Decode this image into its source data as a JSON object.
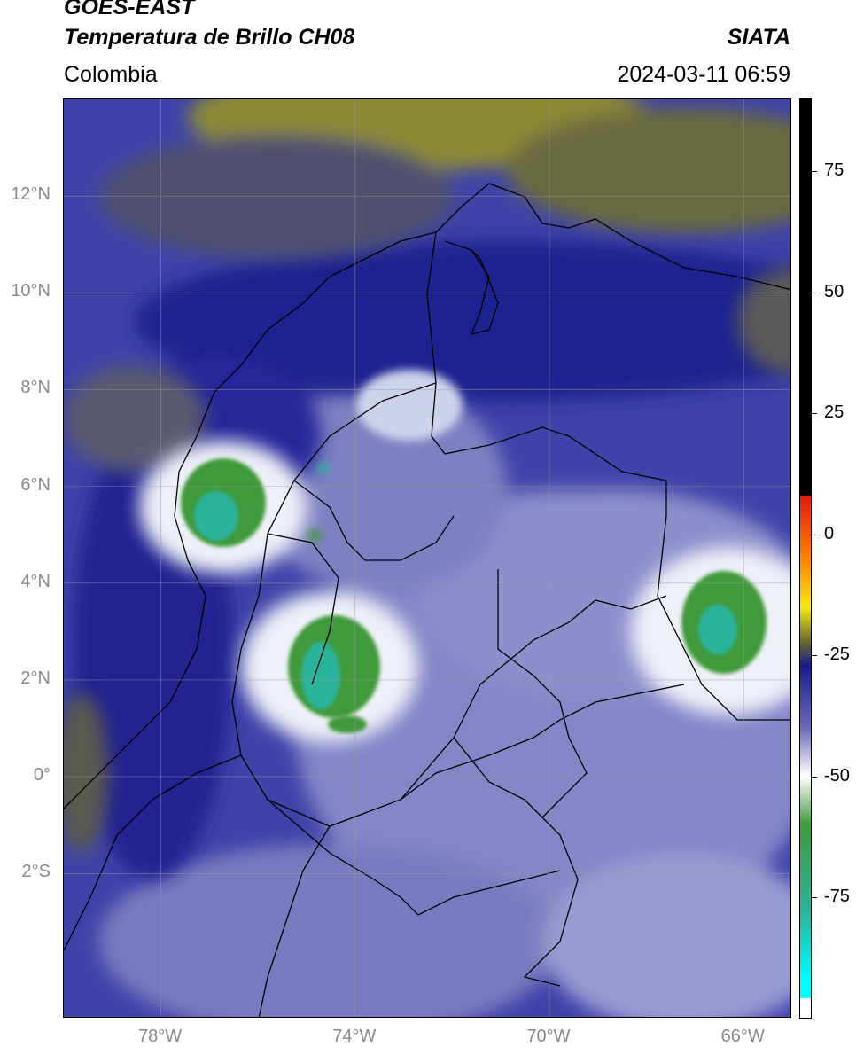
{
  "header": {
    "satellite": "GOES-EAST",
    "product": "Temperatura de Brillo CH08",
    "region": "Colombia",
    "agency": "SIATA",
    "timestamp": "2024-03-11 06:59"
  },
  "map": {
    "lon_range": [
      -80,
      -65
    ],
    "lat_range": [
      -5,
      14
    ],
    "lon_ticks": [
      {
        "value": -78,
        "label": "78°W"
      },
      {
        "value": -74,
        "label": "74°W"
      },
      {
        "value": -70,
        "label": "70°W"
      },
      {
        "value": -66,
        "label": "66°W"
      }
    ],
    "lat_ticks": [
      {
        "value": 12,
        "label": "12°N"
      },
      {
        "value": 10,
        "label": "10°N"
      },
      {
        "value": 8,
        "label": "8°N"
      },
      {
        "value": 6,
        "label": "6°N"
      },
      {
        "value": 4,
        "label": "4°N"
      },
      {
        "value": 2,
        "label": "2°N"
      },
      {
        "value": 0,
        "label": "0°"
      },
      {
        "value": -2,
        "label": "2°S"
      }
    ],
    "gridlines": true,
    "colors": {
      "background": "#3d3fa6",
      "dry_air": "#6b6a2c",
      "cloud_white": "#eef0f6",
      "cold_top_green": "#3f8f3b",
      "coldest_teal": "#2fb29a",
      "borders": "#000000"
    }
  },
  "colorbar": {
    "range": [
      -100,
      90
    ],
    "tick_labels": [
      {
        "value": 75,
        "label": "75"
      },
      {
        "value": 50,
        "label": "50"
      },
      {
        "value": 25,
        "label": "25"
      },
      {
        "value": 0,
        "label": "0"
      },
      {
        "value": -25,
        "label": "-25"
      },
      {
        "value": -50,
        "label": "-50"
      },
      {
        "value": -75,
        "label": "-75"
      }
    ],
    "stops": [
      {
        "value": 90,
        "color": "#000000"
      },
      {
        "value": 8,
        "color": "#000000"
      },
      {
        "value": 7.9,
        "color": "#e01b10"
      },
      {
        "value": -6,
        "color": "#ff8c00"
      },
      {
        "value": -15,
        "color": "#f4e81a"
      },
      {
        "value": -22,
        "color": "#6e6d2a"
      },
      {
        "value": -27,
        "color": "#1a1a8c"
      },
      {
        "value": -40,
        "color": "#6a6ab8"
      },
      {
        "value": -50,
        "color": "#ffffff"
      },
      {
        "value": -60,
        "color": "#3f9a3a"
      },
      {
        "value": -78,
        "color": "#2cb39b"
      },
      {
        "value": -92,
        "color": "#00ffff"
      },
      {
        "value": -95.9,
        "color": "#00ffff"
      },
      {
        "value": -96,
        "color": "#ffffff"
      },
      {
        "value": -100,
        "color": "#ffffff"
      }
    ]
  }
}
